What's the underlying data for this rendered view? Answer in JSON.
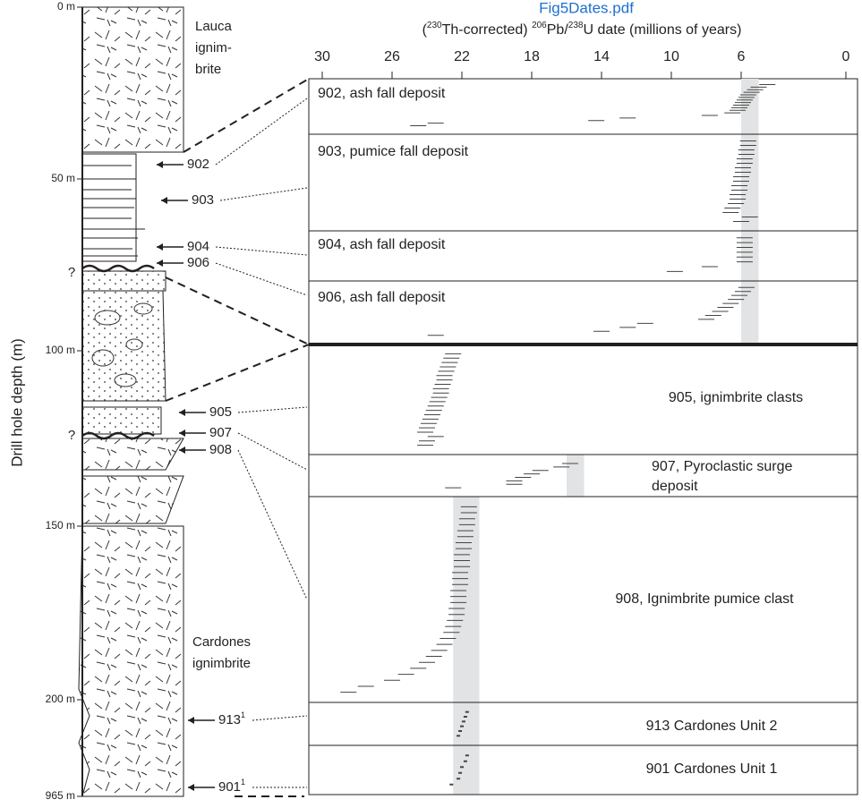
{
  "header": {
    "file_name": "Fig5Dates.pdf"
  },
  "column": {
    "axis_label": "Drill hole depth (m)",
    "depth_labels": [
      "0 m",
      "50 m",
      "100 m",
      "150 m",
      "200 m",
      "965 m"
    ],
    "units": [
      {
        "lines": [
          "Lauca",
          "ignim-",
          "brite"
        ]
      },
      {
        "lines": [
          "Cardones",
          "ignimbrite"
        ]
      }
    ],
    "uncertain_contacts": [
      "?",
      "?"
    ],
    "samples": [
      {
        "id": "902"
      },
      {
        "id": "903"
      },
      {
        "id": "904"
      },
      {
        "id": "906"
      },
      {
        "id": "905"
      },
      {
        "id": "907"
      },
      {
        "id": "908"
      },
      {
        "id": "913",
        "note": "1"
      },
      {
        "id": "901",
        "note": "1"
      }
    ]
  },
  "dates": {
    "axis_title": [
      "(",
      "230",
      "Th-corrected) ",
      "206",
      "Pb/",
      "238",
      "U date (millions of years)"
    ],
    "xlim": [
      30,
      0
    ],
    "xticks": [
      30,
      26,
      22,
      18,
      14,
      10,
      6,
      0
    ],
    "bands": [
      [
        6.0,
        5.0
      ],
      [
        16.0,
        15.0
      ],
      [
        22.5,
        21.0
      ]
    ],
    "panels": [
      {
        "label": [
          "902, ash fall deposit"
        ],
        "dates": [
          4.5,
          5.0,
          5.2,
          5.4,
          5.6,
          5.7,
          5.8,
          5.9,
          6.0,
          6.1,
          6.2,
          6.5,
          7.8,
          12.5,
          14.3,
          23.5,
          24.5
        ]
      },
      {
        "label": [
          "903, pumice fall deposit"
        ],
        "dates": [
          5.6,
          5.6,
          5.7,
          5.7,
          5.8,
          5.8,
          5.9,
          5.9,
          6.0,
          6.0,
          6.1,
          6.1,
          6.2,
          6.2,
          6.3,
          6.5,
          6.6,
          5.5,
          6.0
        ]
      },
      {
        "label": [
          "904, ash fall deposit"
        ],
        "dates": [
          5.8,
          5.8,
          5.8,
          5.8,
          5.8,
          5.8,
          7.8,
          9.8
        ]
      },
      {
        "label": [
          "906, ash fall deposit"
        ],
        "dates": [
          5.7,
          5.9,
          6.1,
          6.3,
          6.6,
          6.9,
          7.2,
          7.6,
          8.0,
          11.5,
          12.5,
          14.0,
          23.5
        ]
      },
      {
        "label": [
          "905, ignimbrite clasts"
        ],
        "dates": [
          22.5,
          22.6,
          22.7,
          22.8,
          22.9,
          23.0,
          23.0,
          23.1,
          23.2,
          23.2,
          23.3,
          23.4,
          23.5,
          23.6,
          23.7,
          23.8,
          23.9,
          24.0,
          24.1,
          23.5,
          24.0,
          24.1
        ]
      },
      {
        "label": [
          "907, Pyroclastic surge",
          "deposit"
        ],
        "dates": [
          15.8,
          16.3,
          17.5,
          18.0,
          18.5,
          19.0,
          19.0,
          22.5
        ]
      },
      {
        "label": [
          "908, Ignimbrite pumice clast"
        ],
        "dates": [
          21.6,
          21.6,
          21.7,
          21.7,
          21.8,
          21.8,
          21.9,
          21.9,
          22.0,
          22.0,
          22.0,
          22.1,
          22.1,
          22.1,
          22.2,
          22.2,
          22.2,
          22.3,
          22.3,
          22.4,
          22.5,
          22.6,
          22.8,
          23.0,
          23.3,
          23.6,
          24.0,
          24.5,
          25.2,
          26.0,
          27.5,
          28.5
        ]
      },
      {
        "label": [
          "913 Cardones Unit 2"
        ],
        "dates": [
          21.7,
          21.8,
          21.9,
          22.0,
          22.1,
          22.2
        ]
      },
      {
        "label": [
          "901 Cardones Unit 1"
        ],
        "dates": [
          21.7,
          21.8,
          22.0,
          22.1,
          22.2,
          22.6
        ]
      }
    ]
  }
}
